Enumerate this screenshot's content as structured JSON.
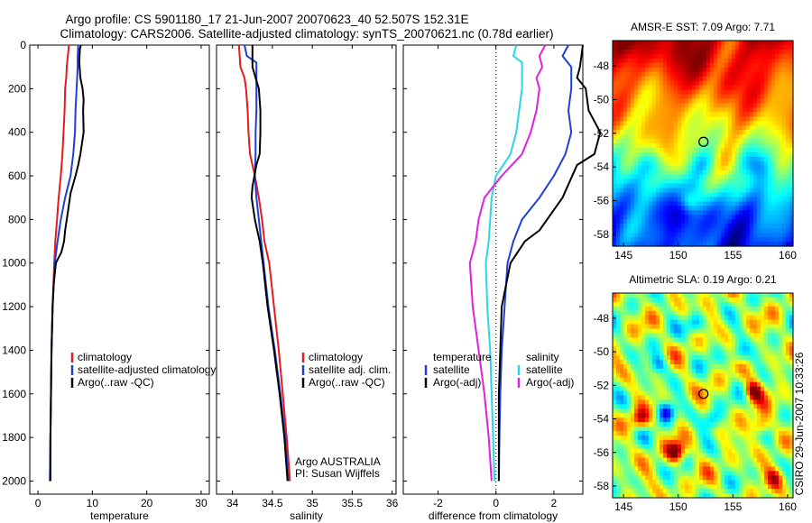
{
  "header": {
    "line1": "Argo profile: CS 5901180_17 21-Jun-2007 20070623_40 52.507S 152.31E",
    "line2": "Climatology: CARS2006. Satellite-adjusted climatology: synTS_20070621.nc (0.78d earlier)"
  },
  "side_text": "CSIRO 29-Jun-2007 10:33:26",
  "chart_data": [
    {
      "type": "line",
      "xlabel": "temperature",
      "xlim": [
        -1.5,
        31.5
      ],
      "ylim": [
        2060,
        0
      ],
      "xticks": [
        0,
        10,
        20,
        30
      ],
      "yticks": [
        0,
        200,
        400,
        600,
        800,
        1000,
        1200,
        1400,
        1600,
        1800,
        2000
      ],
      "legend": [
        "climatology",
        "satellite-adjusted climatology",
        "Argo(..raw -QC)"
      ],
      "series": [
        {
          "name": "climatology",
          "color": "#e41a1c",
          "points": [
            [
              5.7,
              0
            ],
            [
              5.5,
              50
            ],
            [
              5.3,
              100
            ],
            [
              5.2,
              150
            ],
            [
              5.0,
              200
            ],
            [
              4.9,
              300
            ],
            [
              4.7,
              400
            ],
            [
              4.5,
              500
            ],
            [
              4.2,
              600
            ],
            [
              3.8,
              700
            ],
            [
              3.5,
              800
            ],
            [
              3.2,
              900
            ],
            [
              3.0,
              1000
            ],
            [
              2.7,
              1200
            ],
            [
              2.5,
              1400
            ],
            [
              2.4,
              1600
            ],
            [
              2.3,
              1800
            ],
            [
              2.2,
              2000
            ]
          ]
        },
        {
          "name": "satellite-adjusted climatology",
          "color": "#1f3fd6",
          "points": [
            [
              7.4,
              0
            ],
            [
              7.3,
              50
            ],
            [
              7.3,
              100
            ],
            [
              7.2,
              150
            ],
            [
              7.1,
              200
            ],
            [
              6.9,
              300
            ],
            [
              6.8,
              400
            ],
            [
              6.5,
              500
            ],
            [
              6.0,
              600
            ],
            [
              5.0,
              700
            ],
            [
              4.2,
              800
            ],
            [
              3.6,
              900
            ],
            [
              3.1,
              1000
            ],
            [
              2.7,
              1200
            ],
            [
              2.5,
              1400
            ],
            [
              2.4,
              1600
            ],
            [
              2.3,
              1800
            ],
            [
              2.2,
              2000
            ]
          ]
        },
        {
          "name": "Argo(..raw -QC)",
          "color": "#000000",
          "points": [
            [
              7.9,
              0
            ],
            [
              7.7,
              20
            ],
            [
              7.6,
              80
            ],
            [
              7.8,
              150
            ],
            [
              8.2,
              200
            ],
            [
              8.4,
              250
            ],
            [
              8.3,
              300
            ],
            [
              8.4,
              400
            ],
            [
              8.1,
              450
            ],
            [
              7.8,
              500
            ],
            [
              7.4,
              550
            ],
            [
              6.9,
              600
            ],
            [
              6.0,
              680
            ],
            [
              5.6,
              750
            ],
            [
              5.0,
              850
            ],
            [
              4.8,
              900
            ],
            [
              4.3,
              950
            ],
            [
              3.3,
              1000
            ],
            [
              2.9,
              1100
            ],
            [
              2.7,
              1200
            ],
            [
              2.5,
              1400
            ],
            [
              2.4,
              1600
            ],
            [
              2.3,
              1800
            ],
            [
              2.3,
              2000
            ]
          ]
        }
      ]
    },
    {
      "type": "line",
      "xlabel": "salinity",
      "xlim": [
        33.8,
        36.05
      ],
      "ylim": [
        2060,
        0
      ],
      "xticks": [
        34,
        34.5,
        35,
        35.5,
        36
      ],
      "legend": [
        "climatology",
        "satellite adj. clim.",
        "Argo(..raw -QC)"
      ],
      "annotations": [
        "Argo AUSTRALIA",
        "PI: Susan Wijffels"
      ],
      "series": [
        {
          "name": "climatology",
          "color": "#e41a1c",
          "points": [
            [
              34.08,
              0
            ],
            [
              34.1,
              100
            ],
            [
              34.15,
              150
            ],
            [
              34.17,
              200
            ],
            [
              34.19,
              300
            ],
            [
              34.2,
              400
            ],
            [
              34.22,
              500
            ],
            [
              34.28,
              600
            ],
            [
              34.33,
              700
            ],
            [
              34.37,
              800
            ],
            [
              34.4,
              900
            ],
            [
              34.46,
              1000
            ],
            [
              34.52,
              1200
            ],
            [
              34.58,
              1400
            ],
            [
              34.63,
              1600
            ],
            [
              34.68,
              1800
            ],
            [
              34.72,
              2000
            ]
          ]
        },
        {
          "name": "satellite adj. clim.",
          "color": "#1f3fd6",
          "points": [
            [
              34.15,
              0
            ],
            [
              34.18,
              50
            ],
            [
              34.3,
              80
            ],
            [
              34.3,
              200
            ],
            [
              34.3,
              300
            ],
            [
              34.29,
              400
            ],
            [
              34.29,
              500
            ],
            [
              34.28,
              600
            ],
            [
              34.3,
              700
            ],
            [
              34.33,
              800
            ],
            [
              34.36,
              900
            ],
            [
              34.39,
              1000
            ],
            [
              34.45,
              1200
            ],
            [
              34.53,
              1400
            ],
            [
              34.6,
              1600
            ],
            [
              34.66,
              1800
            ],
            [
              34.7,
              2000
            ]
          ]
        },
        {
          "name": "Argo(..raw -QC)",
          "color": "#000000",
          "points": [
            [
              34.25,
              0
            ],
            [
              34.25,
              100
            ],
            [
              34.29,
              150
            ],
            [
              34.33,
              200
            ],
            [
              34.35,
              300
            ],
            [
              34.35,
              400
            ],
            [
              34.34,
              500
            ],
            [
              34.3,
              550
            ],
            [
              34.25,
              650
            ],
            [
              34.24,
              700
            ],
            [
              34.28,
              800
            ],
            [
              34.34,
              900
            ],
            [
              34.38,
              1000
            ],
            [
              34.44,
              1200
            ],
            [
              34.52,
              1400
            ],
            [
              34.59,
              1600
            ],
            [
              34.65,
              1800
            ],
            [
              34.69,
              2000
            ]
          ]
        }
      ]
    },
    {
      "type": "line",
      "xlabel": "difference from climatology",
      "xlim": [
        -3.2,
        3.0
      ],
      "ylim": [
        2060,
        0
      ],
      "xticks": [
        -2,
        0,
        2
      ],
      "legend": [
        "temperature",
        "satellite",
        "Argo(-adj)",
        "salinity",
        "satellite",
        "Argo(-adj)"
      ],
      "series": [
        {
          "name": "temperature satellite",
          "color": "#1f3fd6",
          "points": [
            [
              2.5,
              0
            ],
            [
              2.3,
              50
            ],
            [
              2.6,
              100
            ],
            [
              2.6,
              200
            ],
            [
              2.5,
              300
            ],
            [
              2.6,
              400
            ],
            [
              2.4,
              500
            ],
            [
              2.0,
              600
            ],
            [
              1.5,
              700
            ],
            [
              0.9,
              800
            ],
            [
              0.6,
              900
            ],
            [
              0.4,
              1000
            ],
            [
              0.3,
              1200
            ],
            [
              0.2,
              1400
            ],
            [
              0.15,
              1600
            ],
            [
              0.12,
              1800
            ],
            [
              0.1,
              2000
            ]
          ]
        },
        {
          "name": "temperature Argo(-adj)",
          "color": "#000000",
          "points": [
            [
              3.0,
              0
            ],
            [
              2.9,
              100
            ],
            [
              2.8,
              150
            ],
            [
              3.1,
              200
            ],
            [
              3.2,
              300
            ],
            [
              3.6,
              400
            ],
            [
              3.4,
              500
            ],
            [
              2.8,
              550
            ],
            [
              2.3,
              700
            ],
            [
              1.5,
              850
            ],
            [
              1.0,
              900
            ],
            [
              0.5,
              1000
            ],
            [
              0.2,
              1200
            ],
            [
              0.15,
              1400
            ],
            [
              0.1,
              1600
            ],
            [
              0.1,
              1800
            ],
            [
              0.1,
              2000
            ]
          ]
        },
        {
          "name": "salinity satellite",
          "color": "#28d8e0",
          "points": [
            [
              0.7,
              0
            ],
            [
              0.6,
              50
            ],
            [
              0.9,
              80
            ],
            [
              0.9,
              200
            ],
            [
              0.8,
              300
            ],
            [
              0.7,
              400
            ],
            [
              0.5,
              500
            ],
            [
              0.0,
              600
            ],
            [
              -0.15,
              700
            ],
            [
              -0.2,
              800
            ],
            [
              -0.25,
              900
            ],
            [
              -0.35,
              1000
            ],
            [
              -0.3,
              1200
            ],
            [
              -0.2,
              1400
            ],
            [
              -0.15,
              1600
            ],
            [
              -0.1,
              1800
            ],
            [
              -0.05,
              2000
            ]
          ]
        },
        {
          "name": "salinity Argo(-adj)",
          "color": "#e020e0",
          "points": [
            [
              1.7,
              0
            ],
            [
              1.5,
              50
            ],
            [
              1.6,
              100
            ],
            [
              1.4,
              150
            ],
            [
              1.5,
              200
            ],
            [
              1.4,
              300
            ],
            [
              1.2,
              400
            ],
            [
              0.9,
              500
            ],
            [
              0.2,
              600
            ],
            [
              -0.4,
              700
            ],
            [
              -0.6,
              800
            ],
            [
              -0.7,
              900
            ],
            [
              -0.9,
              1000
            ],
            [
              -0.8,
              1200
            ],
            [
              -0.6,
              1400
            ],
            [
              -0.4,
              1600
            ],
            [
              -0.25,
              1800
            ],
            [
              -0.15,
              2000
            ]
          ]
        }
      ]
    },
    {
      "type": "heatmap",
      "title": "AMSR-E SST: 7.09 Argo: 7.71",
      "xlim": [
        144,
        160.5
      ],
      "ylim": [
        -58.7,
        -46.5
      ],
      "xticks": [
        145,
        150,
        155,
        160
      ],
      "yticks": [
        -48,
        -50,
        -52,
        -54,
        -56,
        -58
      ],
      "colormap": "jet",
      "marker": {
        "lon": 152.31,
        "lat": -52.507
      }
    },
    {
      "type": "heatmap",
      "title": "Altimetric SLA: 0.19 Argo: 0.21",
      "xlim": [
        144,
        160.5
      ],
      "ylim": [
        -58.7,
        -46.5
      ],
      "xticks": [
        145,
        150,
        155,
        160
      ],
      "yticks": [
        -48,
        -50,
        -52,
        -54,
        -56,
        -58
      ],
      "colormap": "jet",
      "marker": {
        "lon": 152.31,
        "lat": -52.507
      }
    }
  ]
}
